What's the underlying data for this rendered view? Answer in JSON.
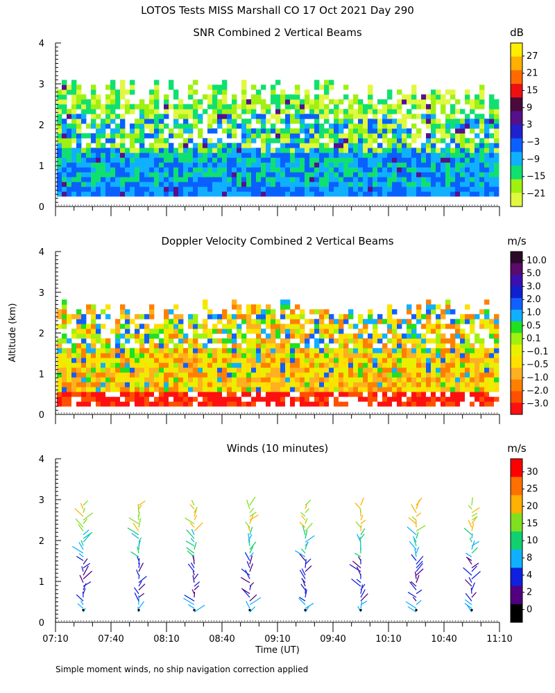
{
  "figure": {
    "title": "LOTOS Tests MISS Marshall CO  17 Oct 2021 Day 290",
    "ylabel": "Altitude (km)",
    "xlabel": "Time (UT)",
    "footnote": "Simple moment winds, no ship navigation correction applied",
    "x_ticks": [
      "07:10",
      "07:40",
      "08:10",
      "08:40",
      "09:10",
      "09:40",
      "10:10",
      "10:40",
      "11:10"
    ],
    "y_ticks": [
      "0",
      "1",
      "2",
      "3",
      "4"
    ]
  },
  "chart_data": [
    {
      "type": "heatmap",
      "title": "SNR Combined 2 Vertical Beams",
      "unit": "dB",
      "xlim": [
        "07:10",
        "11:10"
      ],
      "ylim": [
        0,
        4
      ],
      "colorbar": {
        "labels": [
          "27",
          "21",
          "15",
          "9",
          "3",
          "−3",
          "−9",
          "−15",
          "−21"
        ],
        "colors": [
          "#ffee00",
          "#ffb000",
          "#ff6a00",
          "#ee1010",
          "#4a0a3a",
          "#55108a",
          "#2020d0",
          "#0a60ff",
          "#10b0ff",
          "#10e070",
          "#a0f010",
          "#e0f840"
        ]
      }
    },
    {
      "type": "heatmap",
      "title": "Doppler Velocity Combined 2 Vertical Beams",
      "unit": "m/s",
      "xlim": [
        "07:10",
        "11:10"
      ],
      "ylim": [
        0,
        4
      ],
      "colorbar": {
        "labels": [
          "10.0",
          "5.0",
          "3.0",
          "2.0",
          "1.0",
          "0.5",
          "0.1",
          "−0.1",
          "−0.5",
          "−1.0",
          "−2.0",
          "−3.0"
        ],
        "colors": [
          "#2a0a2a",
          "#5a0a6a",
          "#3a10b0",
          "#1020d0",
          "#1060ff",
          "#10b0ff",
          "#20e020",
          "#a0f010",
          "#e8f000",
          "#ffe000",
          "#ffb020",
          "#ff8000",
          "#ff5000",
          "#ff1010"
        ]
      }
    },
    {
      "type": "wind_barbs",
      "title": "Winds (10 minutes)",
      "unit": "m/s",
      "xlim": [
        "07:10",
        "11:10"
      ],
      "ylim": [
        0,
        4
      ],
      "profile_times": [
        "07:25",
        "07:55",
        "08:25",
        "08:55",
        "09:25",
        "09:55",
        "10:25",
        "10:55"
      ],
      "colorbar": {
        "labels": [
          "30",
          "25",
          "20",
          "15",
          "10",
          "8",
          "4",
          "2",
          "0"
        ],
        "colors": [
          "#ff0000",
          "#ff7000",
          "#ffb000",
          "#80e020",
          "#10d070",
          "#10b0ff",
          "#1020e0",
          "#500080",
          "#000000"
        ]
      }
    }
  ]
}
